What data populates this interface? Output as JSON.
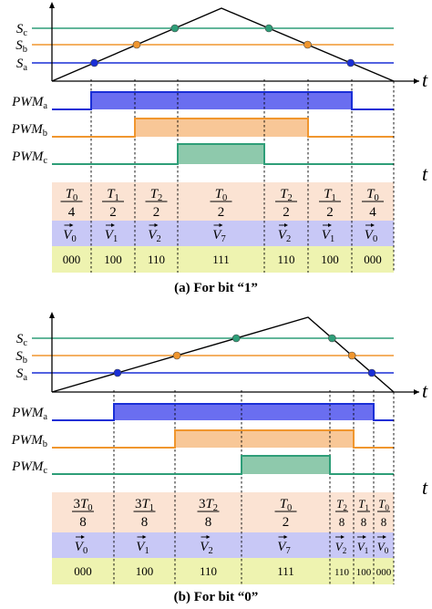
{
  "axis_label": "t",
  "level_labels": {
    "c": "S",
    "c_sub": "c",
    "b": "S",
    "b_sub": "b",
    "a": "S",
    "a_sub": "a"
  },
  "pwm_labels": {
    "a": "PWM",
    "a_sub": "a",
    "b": "PWM",
    "b_sub": "b",
    "c": "PWM",
    "c_sub": "c"
  },
  "colors": {
    "carrier": "#000000",
    "level_c": "#2e9e78",
    "level_b": "#f0962e",
    "level_a": "#1a2fd6",
    "pwm_a_fill": "#6a6ef0",
    "pwm_b_fill": "#f8c797",
    "pwm_c_fill": "#8ec9ac",
    "row_time": "#fbe3d3",
    "row_vec": "#c8c8f6",
    "row_code": "#eef3b0",
    "dashed": "#000000"
  },
  "panels": [
    {
      "id": "a",
      "caption": "(a)  For bit “1”",
      "times": [
        {
          "num": "T",
          "num_sub": "0",
          "num_pre": "",
          "den": "4"
        },
        {
          "num": "T",
          "num_sub": "1",
          "num_pre": "",
          "den": "2"
        },
        {
          "num": "T",
          "num_sub": "2",
          "num_pre": "",
          "den": "2"
        },
        {
          "num": "T",
          "num_sub": "0",
          "num_pre": "",
          "den": "2"
        },
        {
          "num": "T",
          "num_sub": "2",
          "num_pre": "",
          "den": "2"
        },
        {
          "num": "T",
          "num_sub": "1",
          "num_pre": "",
          "den": "2"
        },
        {
          "num": "T",
          "num_sub": "0",
          "num_pre": "",
          "den": "4"
        }
      ],
      "vectors": [
        {
          "v": "V",
          "sub": "0"
        },
        {
          "v": "V",
          "sub": "1"
        },
        {
          "v": "V",
          "sub": "2"
        },
        {
          "v": "V",
          "sub": "7"
        },
        {
          "v": "V",
          "sub": "2"
        },
        {
          "v": "V",
          "sub": "1"
        },
        {
          "v": "V",
          "sub": "0"
        }
      ],
      "codes": [
        "000",
        "100",
        "110",
        "111",
        "110",
        "100",
        "000"
      ]
    },
    {
      "id": "b",
      "caption": "(b)  For bit “0”",
      "times": [
        {
          "num": "T",
          "num_sub": "0",
          "num_pre": "3",
          "den": "8"
        },
        {
          "num": "T",
          "num_sub": "1",
          "num_pre": "3",
          "den": "8"
        },
        {
          "num": "T",
          "num_sub": "2",
          "num_pre": "3",
          "den": "8"
        },
        {
          "num": "T",
          "num_sub": "0",
          "num_pre": "",
          "den": "2"
        },
        {
          "num": "T",
          "num_sub": "2",
          "num_pre": "",
          "den": "8"
        },
        {
          "num": "T",
          "num_sub": "1",
          "num_pre": "",
          "den": "8"
        },
        {
          "num": "T",
          "num_sub": "0",
          "num_pre": "",
          "den": "8"
        }
      ],
      "vectors": [
        {
          "v": "V",
          "sub": "0"
        },
        {
          "v": "V",
          "sub": "1"
        },
        {
          "v": "V",
          "sub": "2"
        },
        {
          "v": "V",
          "sub": "7"
        },
        {
          "v": "V",
          "sub": "2"
        },
        {
          "v": "V",
          "sub": "1"
        },
        {
          "v": "V",
          "sub": "0"
        }
      ],
      "codes": [
        "000",
        "100",
        "110",
        "111",
        "110",
        "100",
        "000"
      ]
    }
  ]
}
